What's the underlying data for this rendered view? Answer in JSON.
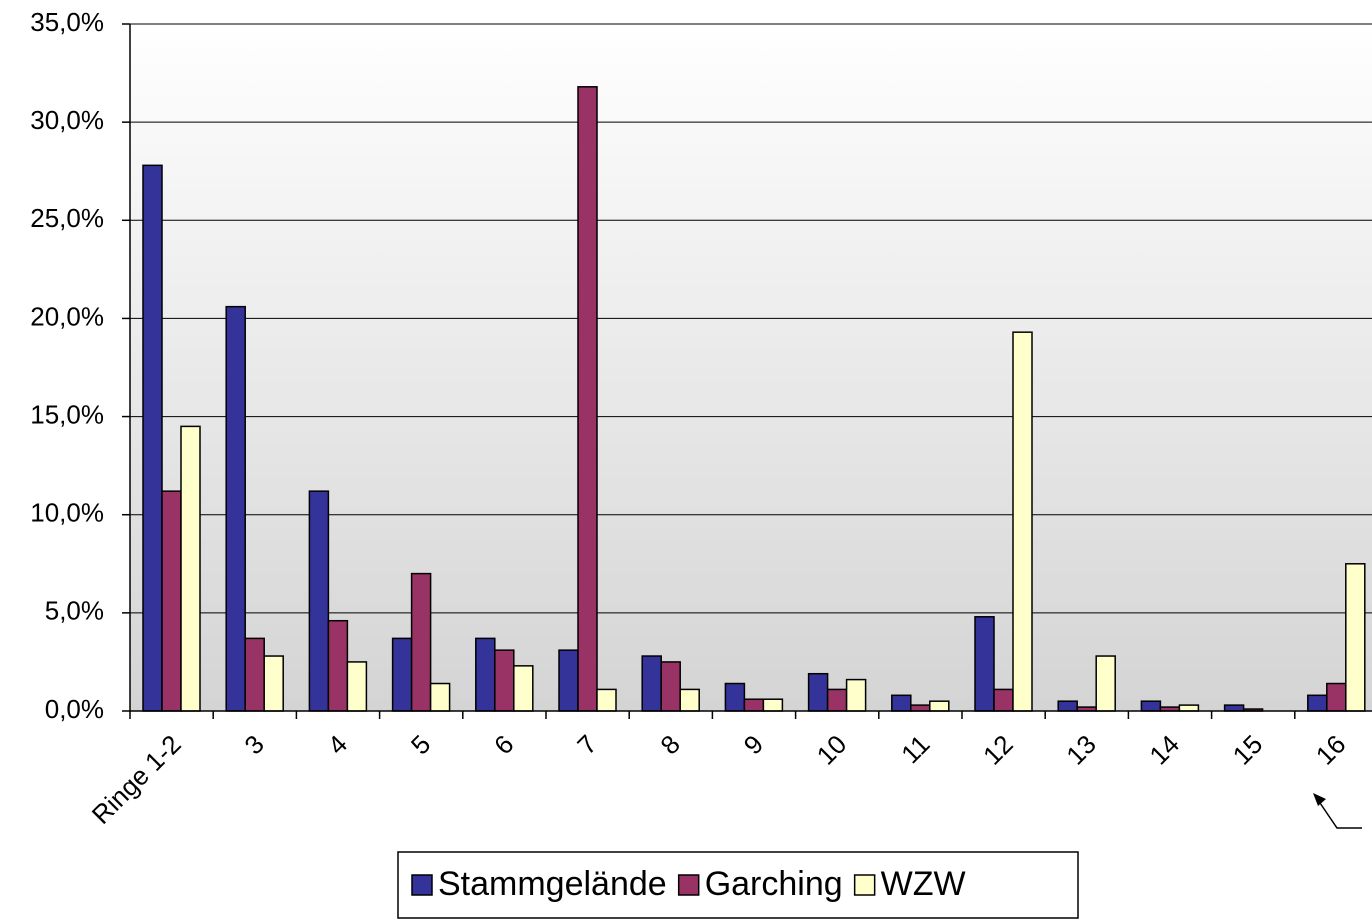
{
  "chart_data": {
    "type": "bar",
    "categories": [
      "Ringe 1-2",
      "3",
      "4",
      "5",
      "6",
      "7",
      "8",
      "9",
      "10",
      "11",
      "12",
      "13",
      "14",
      "15",
      "16"
    ],
    "series": [
      {
        "name": "Stammgelände",
        "color": "#333399",
        "values": [
          27.8,
          20.6,
          11.2,
          3.7,
          3.7,
          3.1,
          2.8,
          1.4,
          1.9,
          0.8,
          4.8,
          0.5,
          0.5,
          0.3,
          0.8
        ]
      },
      {
        "name": "Garching",
        "color": "#993366",
        "values": [
          11.2,
          3.7,
          4.6,
          7.0,
          3.1,
          31.8,
          2.5,
          0.6,
          1.1,
          0.3,
          1.1,
          0.2,
          0.2,
          0.1,
          1.4
        ]
      },
      {
        "name": "WZW",
        "color": "#ffffcc",
        "values": [
          14.5,
          2.8,
          2.5,
          1.4,
          2.3,
          1.1,
          1.1,
          0.6,
          1.6,
          0.5,
          19.3,
          2.8,
          0.3,
          0,
          7.5
        ]
      }
    ],
    "ylim": [
      0,
      35
    ],
    "yticks": [
      {
        "value": 0,
        "label": "0,0%"
      },
      {
        "value": 5,
        "label": "5,0%"
      },
      {
        "value": 10,
        "label": "10,0%"
      },
      {
        "value": 15,
        "label": "15,0%"
      },
      {
        "value": 20,
        "label": "20,0%"
      },
      {
        "value": 25,
        "label": "25,0%"
      },
      {
        "value": 30,
        "label": "30,0%"
      },
      {
        "value": 35,
        "label": "35,0%"
      }
    ],
    "grid": true,
    "legend": "bottom"
  }
}
